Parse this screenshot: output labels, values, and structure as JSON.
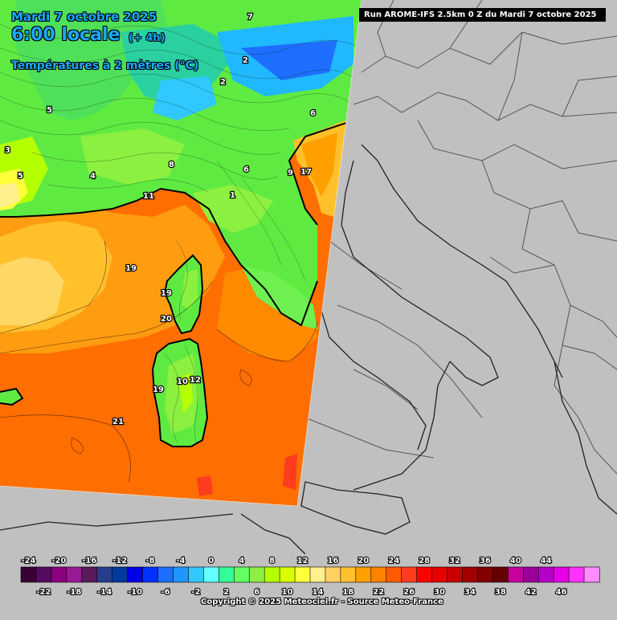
{
  "header": {
    "date": "Mardi 7 octobre 2025",
    "time": "6:00 locale",
    "lead": "(+ 4h)",
    "variable": "Températures à 2 mètres (°C)"
  },
  "run_banner": "Run AROME-IFS 2.5km 0 Z du Mardi 7 octobre 2025",
  "copyright": "Copyright © 2025 Meteociel.fr - Source Meteo-France",
  "colors": {
    "background_gray": "#c0c0c0",
    "border_line": "#505050",
    "coast_line": "#000000",
    "sea_warm": "#ff6e00",
    "sea_cool": "#ff9a10",
    "land_green": "#5fea42"
  },
  "map_labels": [
    {
      "id": "v19-a",
      "text": "19"
    },
    {
      "id": "v20",
      "text": "20"
    },
    {
      "id": "v21",
      "text": "21"
    },
    {
      "id": "v17",
      "text": "17"
    },
    {
      "id": "v19-corsica",
      "text": "19"
    },
    {
      "id": "v19-sardinia",
      "text": "19"
    },
    {
      "id": "v10",
      "text": "10"
    },
    {
      "id": "v12",
      "text": "12"
    },
    {
      "id": "v9",
      "text": "9"
    },
    {
      "id": "v6-a",
      "text": "6"
    },
    {
      "id": "v6-b",
      "text": "6"
    },
    {
      "id": "v5-a",
      "text": "5"
    },
    {
      "id": "v5-b",
      "text": "5"
    },
    {
      "id": "v4-a",
      "text": "4"
    },
    {
      "id": "v3-a",
      "text": "3"
    },
    {
      "id": "v2-a",
      "text": "2"
    },
    {
      "id": "v2-b",
      "text": "2"
    },
    {
      "id": "v8",
      "text": "8"
    },
    {
      "id": "v7",
      "text": "7"
    },
    {
      "id": "v11",
      "text": "11"
    },
    {
      "id": "v1",
      "text": "1"
    }
  ],
  "legend": {
    "colors": [
      "#3b0033",
      "#540a5e",
      "#8a007e",
      "#9a1a96",
      "#5a1a5a",
      "#283c8c",
      "#003a9c",
      "#0000e6",
      "#0032ff",
      "#1e6eff",
      "#1e96ff",
      "#30c8ff",
      "#64ffff",
      "#32ff96",
      "#64ff64",
      "#8cf040",
      "#b4ff00",
      "#d7ff00",
      "#ffff3c",
      "#fff08c",
      "#ffd260",
      "#ffc030",
      "#ffa000",
      "#ff8200",
      "#ff5a00",
      "#ff3c1e",
      "#ff0000",
      "#e60000",
      "#c80000",
      "#a00000",
      "#820000",
      "#640000",
      "#c8009c",
      "#9b009b",
      "#b400c8",
      "#e600e6",
      "#ff32ff",
      "#ff8cff"
    ],
    "top_ticks": [
      "-24",
      "-20",
      "-16",
      "-12",
      "-8",
      "-4",
      "0",
      "4",
      "8",
      "12",
      "16",
      "20",
      "24",
      "28",
      "32",
      "36",
      "40",
      "44"
    ],
    "bottom_ticks": [
      "-22",
      "-18",
      "-14",
      "-10",
      "-6",
      "-2",
      "2",
      "6",
      "10",
      "14",
      "18",
      "22",
      "26",
      "30",
      "34",
      "38",
      "42",
      "46"
    ]
  }
}
